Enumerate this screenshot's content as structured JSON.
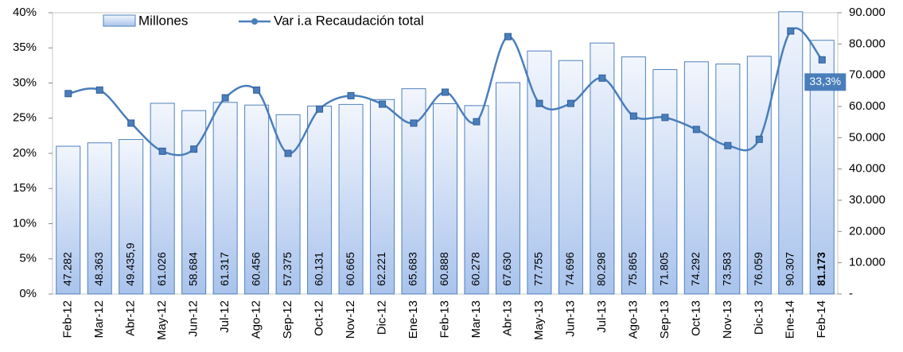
{
  "chart_data": {
    "type": "bar-line",
    "categories": [
      "Feb-12",
      "Mar-12",
      "Abr-12",
      "May-12",
      "Jun-12",
      "Jul-12",
      "Ago-12",
      "Sep-12",
      "Oct-12",
      "Nov-12",
      "Dic-12",
      "Ene-13",
      "Feb-13",
      "Mar-13",
      "Abr-13",
      "May-13",
      "Jun-13",
      "Jul-13",
      "Ago-13",
      "Sep-13",
      "Oct-13",
      "Nov-13",
      "Dic-13",
      "Ene-14",
      "Feb-14"
    ],
    "series": [
      {
        "name": "Millones",
        "type": "bar",
        "axis": "y2",
        "color": "#4f81bd",
        "values": [
          47282,
          48363,
          49435.9,
          61026,
          58684,
          61317,
          60456,
          57375,
          60131,
          60665,
          62221,
          65683,
          60888,
          60278,
          67630,
          77755,
          74696,
          80298,
          75865,
          71805,
          74292,
          73583,
          76059,
          90307,
          81173
        ],
        "value_labels": [
          "47.282",
          "48.363",
          "49.435,9",
          "61.026",
          "58.684",
          "61.317",
          "60.456",
          "57.375",
          "60.131",
          "60.665",
          "62.221",
          "65.683",
          "60.888",
          "60.278",
          "67.630",
          "77.755",
          "74.696",
          "80.298",
          "75.865",
          "71.805",
          "74.292",
          "73.583",
          "76.059",
          "90.307",
          "81.173"
        ]
      },
      {
        "name": "Var i.a Recaudación total",
        "type": "line",
        "axis": "y",
        "color": "#4a7ebb",
        "values": [
          28.5,
          29.0,
          24.3,
          20.3,
          20.6,
          27.9,
          29.0,
          20.0,
          26.3,
          28.2,
          27.0,
          24.3,
          28.7,
          24.5,
          36.6,
          27.1,
          27.1,
          30.7,
          25.3,
          25.1,
          23.4,
          21.1,
          22.0,
          37.4,
          33.3
        ],
        "value_labels": [
          null,
          null,
          null,
          null,
          null,
          null,
          null,
          null,
          null,
          null,
          null,
          null,
          null,
          null,
          null,
          null,
          null,
          null,
          null,
          null,
          null,
          null,
          null,
          null,
          "33,3%"
        ]
      }
    ],
    "ylim": [
      0,
      40
    ],
    "yticks": [
      {
        "value": 0,
        "label": "0%"
      },
      {
        "value": 5,
        "label": "5%"
      },
      {
        "value": 10,
        "label": "10%"
      },
      {
        "value": 15,
        "label": "15%"
      },
      {
        "value": 20,
        "label": "20%"
      },
      {
        "value": 25,
        "label": "25%"
      },
      {
        "value": 30,
        "label": "30%"
      },
      {
        "value": 35,
        "label": "35%"
      },
      {
        "value": 40,
        "label": "40%"
      }
    ],
    "y2lim": [
      0,
      90000
    ],
    "y2ticks": [
      {
        "value": 0,
        "label": "-"
      },
      {
        "value": 10000,
        "label": "10.000"
      },
      {
        "value": 20000,
        "label": "20.000"
      },
      {
        "value": 30000,
        "label": "30.000"
      },
      {
        "value": 40000,
        "label": "40.000"
      },
      {
        "value": 50000,
        "label": "50.000"
      },
      {
        "value": 60000,
        "label": "60.000"
      },
      {
        "value": 70000,
        "label": "70.000"
      },
      {
        "value": 80000,
        "label": "80.000"
      },
      {
        "value": 90000,
        "label": "90.000"
      }
    ],
    "grid": false,
    "legend": "top"
  }
}
